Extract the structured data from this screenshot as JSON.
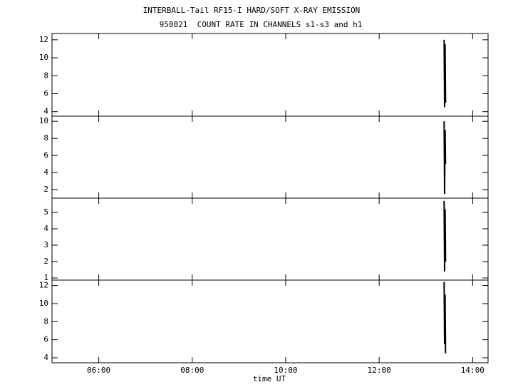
{
  "chart_data": [
    {
      "type": "line",
      "title": "INTERBALL-Tail RF15-I HARD/SOFT X-RAY EMISSION",
      "subtitle": "950821  COUNT RATE IN CHANNELS s1-s3 and h1",
      "xlim": [
        5,
        14.33
      ],
      "ylim": [
        3.5,
        12.7
      ],
      "yticks": [
        4,
        6,
        8,
        10,
        12
      ],
      "series": [
        {
          "color": "#000000",
          "x": [
            13.39,
            13.4,
            13.41,
            13.42
          ],
          "values": [
            12.0,
            4.5,
            11.5,
            5.0
          ]
        }
      ]
    },
    {
      "type": "line",
      "xlim": [
        5,
        14.33
      ],
      "ylim": [
        1.0,
        10.6
      ],
      "yticks": [
        2,
        4,
        6,
        8,
        10
      ],
      "series": [
        {
          "color": "#000000",
          "x": [
            13.39,
            13.4,
            13.41,
            13.42
          ],
          "values": [
            10.0,
            1.5,
            9.0,
            5.0
          ]
        }
      ]
    },
    {
      "type": "line",
      "xlim": [
        5,
        14.33
      ],
      "ylim": [
        0.87,
        5.87
      ],
      "yticks": [
        1,
        2,
        3,
        4,
        5
      ],
      "series": [
        {
          "color": "#000000",
          "x": [
            13.39,
            13.4,
            13.41,
            13.42
          ],
          "values": [
            5.7,
            1.4,
            5.2,
            2.0
          ]
        }
      ]
    },
    {
      "type": "line",
      "xlim": [
        5,
        14.33
      ],
      "ylim": [
        3.45,
        12.6
      ],
      "yticks": [
        4,
        6,
        8,
        10,
        12
      ],
      "xlabel": "time UT",
      "xticks": [
        {
          "value": 6,
          "label": "06:00"
        },
        {
          "value": 8,
          "label": "08:00"
        },
        {
          "value": 10,
          "label": "10:00"
        },
        {
          "value": 12,
          "label": "12:00"
        },
        {
          "value": 14,
          "label": "14:00"
        }
      ],
      "series": [
        {
          "color": "#000000",
          "x": [
            13.39,
            13.4,
            13.41,
            13.42
          ],
          "values": [
            12.4,
            5.5,
            11.0,
            4.5
          ]
        }
      ]
    }
  ]
}
